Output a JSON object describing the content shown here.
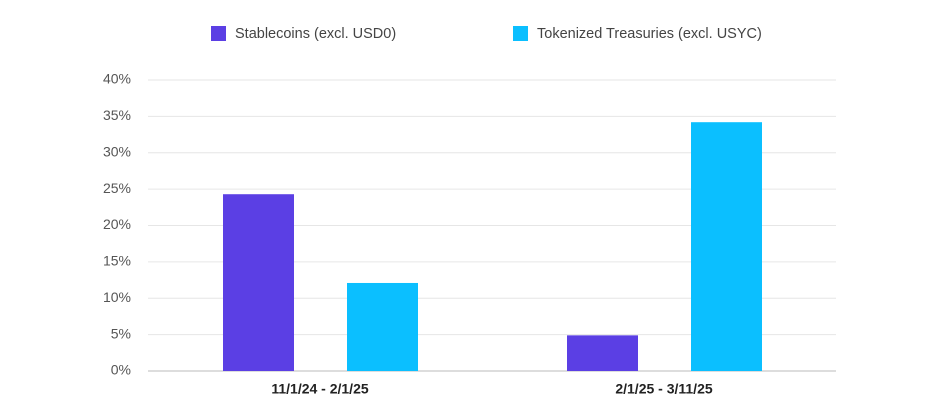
{
  "chart_data": {
    "type": "bar",
    "categories": [
      "11/1/24 - 2/1/25",
      "2/1/25 - 3/11/25"
    ],
    "series": [
      {
        "name": "Stablecoins (excl. USD0)",
        "color": "#5b3fe4",
        "values": [
          24.3,
          4.9
        ]
      },
      {
        "name": "Tokenized Treasuries (excl. USYC)",
        "color": "#0bbfff",
        "values": [
          12.1,
          34.2
        ]
      }
    ],
    "ylim": [
      0,
      40
    ],
    "yticks": [
      {
        "value": 0,
        "label": "0%"
      },
      {
        "value": 5,
        "label": "5%"
      },
      {
        "value": 10,
        "label": "10%"
      },
      {
        "value": 15,
        "label": "15%"
      },
      {
        "value": 20,
        "label": "20%"
      },
      {
        "value": 25,
        "label": "25%"
      },
      {
        "value": 30,
        "label": "30%"
      },
      {
        "value": 35,
        "label": "35%"
      },
      {
        "value": 40,
        "label": "40%"
      }
    ],
    "grid": true
  }
}
